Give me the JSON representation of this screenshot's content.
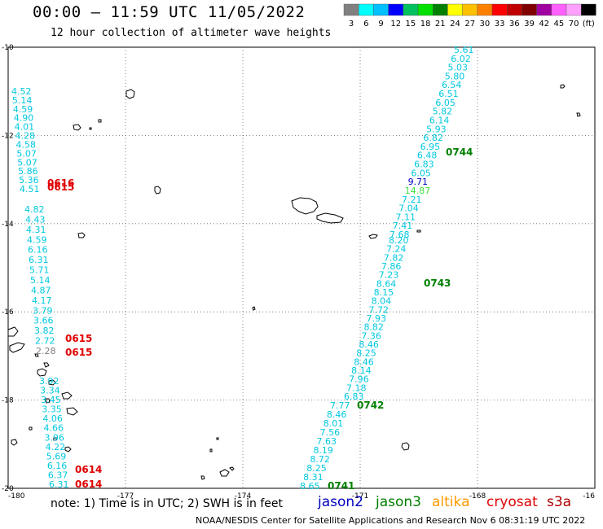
{
  "header": {
    "title": "00:00 – 11:59 UTC 11/05/2022",
    "subtitle": "12 hour collection of altimeter wave heights"
  },
  "legend": {
    "colors": [
      "#808080",
      "#00ffff",
      "#00c0ff",
      "#0000ff",
      "#00c060",
      "#00e000",
      "#008000",
      "#ffff00",
      "#ffc000",
      "#ff8000",
      "#ff0000",
      "#c00000",
      "#800000",
      "#a000a0",
      "#ff60ff",
      "#ffa0ff",
      "#000000"
    ],
    "labels": [
      "3",
      "6",
      "9",
      "12",
      "15",
      "18",
      "21",
      "24",
      "27",
      "30",
      "33",
      "36",
      "39",
      "42",
      "45",
      "70",
      "(ft)"
    ]
  },
  "axes": {
    "x_ticks": [
      "-180",
      "-177",
      "-174",
      "-171",
      "-168",
      "-16"
    ],
    "y_ticks": [
      "-10",
      "-12",
      "-14",
      "-16",
      "-18",
      "-20"
    ]
  },
  "tracks": [
    {
      "satellite": "jason3",
      "time": "0744",
      "color": "#008000",
      "values": [
        {
          "v": "5.61",
          "c": "#00c8e0"
        },
        {
          "v": "6.02",
          "c": "#00c8e0"
        },
        {
          "v": "5.03",
          "c": "#00c8e0"
        },
        {
          "v": "5.80",
          "c": "#00c8e0"
        },
        {
          "v": "6.54",
          "c": "#00c8e0"
        },
        {
          "v": "6.51",
          "c": "#00c8e0"
        },
        {
          "v": "6.05",
          "c": "#00c8e0"
        },
        {
          "v": "5.82",
          "c": "#00c8e0"
        },
        {
          "v": "6.14",
          "c": "#00c8e0"
        },
        {
          "v": "5.93",
          "c": "#00c8e0"
        },
        {
          "v": "6.82",
          "c": "#00c8e0"
        },
        {
          "v": "6.95",
          "c": "#00c8e0"
        },
        {
          "v": "6.48",
          "c": "#00c8e0"
        },
        {
          "v": "6.83",
          "c": "#00c8e0"
        },
        {
          "v": "6.05",
          "c": "#00c8e0"
        },
        {
          "v": "9.71",
          "c": "#0000c0"
        },
        {
          "v": "14.87",
          "c": "#40e040"
        },
        {
          "v": "7.21",
          "c": "#00c8e0"
        },
        {
          "v": "7.04",
          "c": "#00c8e0"
        },
        {
          "v": "7.11",
          "c": "#00c8e0"
        },
        {
          "v": "7.41",
          "c": "#00c8e0"
        },
        {
          "v": "7.68",
          "c": "#00c8e0"
        }
      ]
    },
    {
      "satellite": "jason3",
      "time": "0743",
      "color": "#008000",
      "values": [
        {
          "v": "8.20",
          "c": "#00c8e0"
        },
        {
          "v": "7.24",
          "c": "#00c8e0"
        },
        {
          "v": "7.82",
          "c": "#00c8e0"
        },
        {
          "v": "7.86",
          "c": "#00c8e0"
        },
        {
          "v": "7.23",
          "c": "#00c8e0"
        },
        {
          "v": "8.64",
          "c": "#00c8e0"
        },
        {
          "v": "8.15",
          "c": "#00c8e0"
        },
        {
          "v": "8.04",
          "c": "#00c8e0"
        },
        {
          "v": "7.72",
          "c": "#00c8e0"
        },
        {
          "v": "7.93",
          "c": "#00c8e0"
        },
        {
          "v": "8.82",
          "c": "#00c8e0"
        },
        {
          "v": "7.36",
          "c": "#00c8e0"
        },
        {
          "v": "8.46",
          "c": "#00c8e0"
        },
        {
          "v": "8.25",
          "c": "#00c8e0"
        },
        {
          "v": "8.46",
          "c": "#00c8e0"
        },
        {
          "v": "8.14",
          "c": "#00c8e0"
        },
        {
          "v": "7.96",
          "c": "#00c8e0"
        },
        {
          "v": "7.18",
          "c": "#00c8e0"
        },
        {
          "v": "6.83",
          "c": "#00c8e0"
        }
      ]
    },
    {
      "satellite": "jason3",
      "time": "0742",
      "color": "#008000",
      "values": [
        {
          "v": "7.77",
          "c": "#00c8e0"
        },
        {
          "v": "8.46",
          "c": "#00c8e0"
        },
        {
          "v": "8.01",
          "c": "#00c8e0"
        },
        {
          "v": "7.56",
          "c": "#00c8e0"
        },
        {
          "v": "7.63",
          "c": "#00c8e0"
        },
        {
          "v": "8.19",
          "c": "#00c8e0"
        },
        {
          "v": "8.72",
          "c": "#00c8e0"
        },
        {
          "v": "8.25",
          "c": "#00c8e0"
        },
        {
          "v": "8.31",
          "c": "#00c8e0"
        },
        {
          "v": "8.65",
          "c": "#00c8e0"
        }
      ]
    },
    {
      "satellite": "jason3",
      "time": "0741",
      "color": "#008000",
      "values": []
    },
    {
      "satellite": "cryosat",
      "time": "0616",
      "color": "#e00000",
      "values": [
        {
          "v": "4.52",
          "c": "#00c8e0"
        },
        {
          "v": "5.14",
          "c": "#00c8e0"
        },
        {
          "v": "4.59",
          "c": "#00c8e0"
        },
        {
          "v": "4.90",
          "c": "#00c8e0"
        },
        {
          "v": "4.01",
          "c": "#00c8e0"
        },
        {
          "v": "4.28",
          "c": "#00c8e0"
        },
        {
          "v": "4.58",
          "c": "#00c8e0"
        },
        {
          "v": "5.07",
          "c": "#00c8e0"
        },
        {
          "v": "5.07",
          "c": "#00c8e0"
        },
        {
          "v": "5.86",
          "c": "#00c8e0"
        },
        {
          "v": "5.36",
          "c": "#00c8e0"
        },
        {
          "v": "4.51",
          "c": "#00c8e0"
        }
      ]
    },
    {
      "satellite": "cryosat",
      "time": "0615",
      "color": "#e00000",
      "values": [
        {
          "v": "4.82",
          "c": "#00c8e0"
        },
        {
          "v": "4.43",
          "c": "#00c8e0"
        },
        {
          "v": "4.31",
          "c": "#00c8e0"
        },
        {
          "v": "4.59",
          "c": "#00c8e0"
        },
        {
          "v": "6.16",
          "c": "#00c8e0"
        },
        {
          "v": "6.31",
          "c": "#00c8e0"
        },
        {
          "v": "5.71",
          "c": "#00c8e0"
        },
        {
          "v": "5.14",
          "c": "#00c8e0"
        },
        {
          "v": "4.87",
          "c": "#00c8e0"
        },
        {
          "v": "4.17",
          "c": "#00c8e0"
        },
        {
          "v": "3.79",
          "c": "#00c8e0"
        },
        {
          "v": "3.66",
          "c": "#00c8e0"
        },
        {
          "v": "3.82",
          "c": "#00c8e0"
        },
        {
          "v": "2.72",
          "c": "#00c8e0"
        },
        {
          "v": "2.28",
          "c": "#808080"
        }
      ]
    },
    {
      "satellite": "cryosat",
      "time": "0614",
      "color": "#e00000",
      "values": [
        {
          "v": "3.92",
          "c": "#00c8e0"
        },
        {
          "v": "3.34",
          "c": "#00c8e0"
        },
        {
          "v": "3.45",
          "c": "#00c8e0"
        },
        {
          "v": "3.35",
          "c": "#00c8e0"
        },
        {
          "v": "4.06",
          "c": "#00c8e0"
        },
        {
          "v": "4.66",
          "c": "#00c8e0"
        },
        {
          "v": "3.96",
          "c": "#00c8e0"
        },
        {
          "v": "4.22",
          "c": "#00c8e0"
        },
        {
          "v": "5.69",
          "c": "#00c8e0"
        },
        {
          "v": "6.16",
          "c": "#00c8e0"
        },
        {
          "v": "6.37",
          "c": "#00c8e0"
        },
        {
          "v": "6.31",
          "c": "#00c8e0"
        }
      ]
    }
  ],
  "track_labels": [
    {
      "text": "0744",
      "color": "#008000"
    },
    {
      "text": "0743",
      "color": "#008000"
    },
    {
      "text": "0742",
      "color": "#008000"
    },
    {
      "text": "0741",
      "color": "#008000"
    },
    {
      "text": "0616",
      "color": "#e00000"
    },
    {
      "text": "0615",
      "color": "#e00000"
    },
    {
      "text": "0615",
      "color": "#e00000"
    },
    {
      "text": "0615",
      "color": "#e00000"
    },
    {
      "text": "0614",
      "color": "#e00000"
    },
    {
      "text": "0614",
      "color": "#e00000"
    }
  ],
  "footer": {
    "note": "note: 1) Time is in UTC; 2) SWH is in feet",
    "satellites": [
      {
        "name": "jason2",
        "color": "#0000c0"
      },
      {
        "name": "jason3",
        "color": "#008000"
      },
      {
        "name": "altika",
        "color": "#ff9900"
      },
      {
        "name": "cryosat",
        "color": "#e00000"
      },
      {
        "name": "s3a",
        "color": "#b00000"
      }
    ],
    "credit": "NOAA/NESDIS Center for Satellite Applications and Research   Nov  6 08:31:19 UTC 2022"
  }
}
